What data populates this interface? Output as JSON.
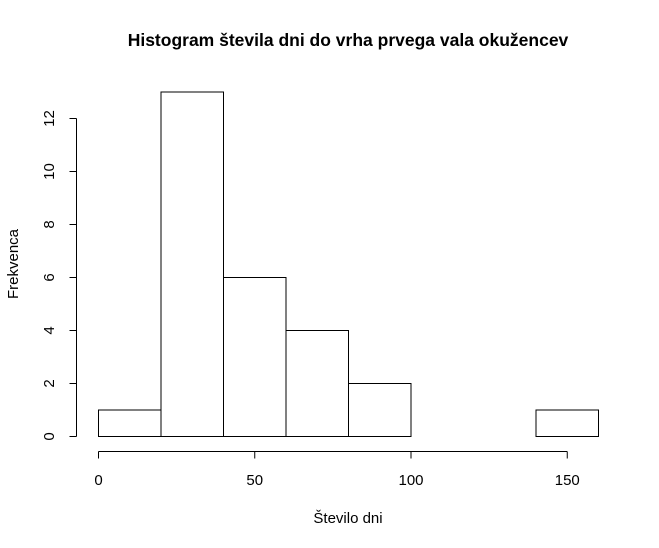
{
  "chart_data": {
    "type": "bar",
    "title": "Histogram števila dni do vrha prvega vala okužencev",
    "xlabel": "Število dni",
    "ylabel": "Frekvenca",
    "bins": [
      {
        "from": 0,
        "to": 20,
        "count": 1
      },
      {
        "from": 20,
        "to": 40,
        "count": 13
      },
      {
        "from": 40,
        "to": 60,
        "count": 6
      },
      {
        "from": 60,
        "to": 80,
        "count": 4
      },
      {
        "from": 80,
        "to": 100,
        "count": 2
      },
      {
        "from": 100,
        "to": 120,
        "count": 0
      },
      {
        "from": 120,
        "to": 140,
        "count": 0
      },
      {
        "from": 140,
        "to": 160,
        "count": 1
      }
    ],
    "xlim": [
      0,
      160
    ],
    "ylim": [
      0,
      13
    ],
    "x_ticks": [
      0,
      50,
      100,
      150
    ],
    "x_tick_labels": [
      "0",
      "50",
      "100",
      "150"
    ],
    "y_ticks": [
      0,
      2,
      4,
      6,
      8,
      10,
      12
    ],
    "y_tick_labels": [
      "0",
      "2",
      "4",
      "6",
      "8",
      "10",
      "12"
    ],
    "grid": false,
    "legend": "none",
    "colors": {
      "bar_fill": "#ffffff",
      "bar_stroke": "#000000"
    }
  }
}
